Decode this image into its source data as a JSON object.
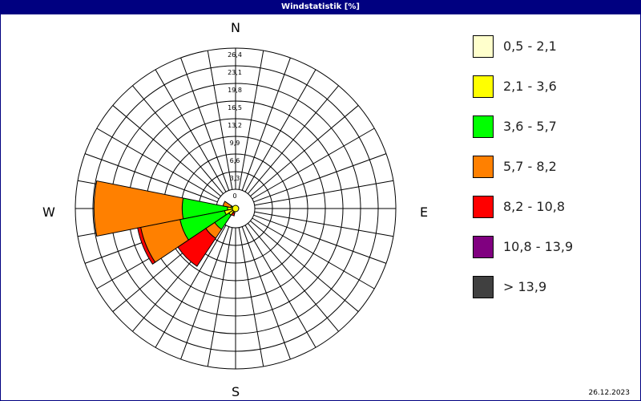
{
  "window": {
    "title": "Windstatistik [%]"
  },
  "directions": {
    "north": "N",
    "east": "E",
    "south": "S",
    "west": "W"
  },
  "date": "26.12.2023",
  "legend": [
    {
      "label": "0,5 - 2,1",
      "color": "#ffffcc"
    },
    {
      "label": "2,1 - 3,6",
      "color": "#ffff00"
    },
    {
      "label": "3,6 - 5,7",
      "color": "#00ff00"
    },
    {
      "label": "5,7 - 8,2",
      "color": "#ff8000"
    },
    {
      "label": "8,2 - 10,8",
      "color": "#ff0000"
    },
    {
      "label": "10,8 - 13,9",
      "color": "#800080"
    },
    {
      "label": " > 13,9",
      "color": "#404040"
    }
  ],
  "chart_data": {
    "type": "polar-stacked-bar",
    "title": "Windstatistik [%]",
    "radial_ticks": [
      "0",
      "3,3",
      "6,6",
      "9,9",
      "13,2",
      "16,5",
      "19,8",
      "23,1",
      "26,4"
    ],
    "rmax": 26.4,
    "sector_width_deg": 22.5,
    "series_names": [
      "0,5 - 2,1",
      "2,1 - 3,6",
      "3,6 - 5,7",
      "5,7 - 8,2",
      "8,2 - 10,8",
      "10,8 - 13,9",
      " > 13,9"
    ],
    "sectors": [
      {
        "direction_deg": 292.5,
        "values": [
          0.2,
          0.3,
          0.4,
          1.5,
          0,
          0,
          0
        ]
      },
      {
        "direction_deg": 270,
        "values": [
          0.3,
          1.2,
          8.5,
          16.5,
          0,
          0,
          0
        ]
      },
      {
        "direction_deg": 247.5,
        "values": [
          0.3,
          1.8,
          8.5,
          7.5,
          0.6,
          0,
          0
        ]
      },
      {
        "direction_deg": 225,
        "values": [
          0.3,
          1.2,
          3.2,
          2.0,
          6.3,
          0,
          0
        ]
      },
      {
        "direction_deg": 202.5,
        "values": [
          0.2,
          0.2,
          0.2,
          0.3,
          0.5,
          0,
          0
        ]
      }
    ]
  }
}
